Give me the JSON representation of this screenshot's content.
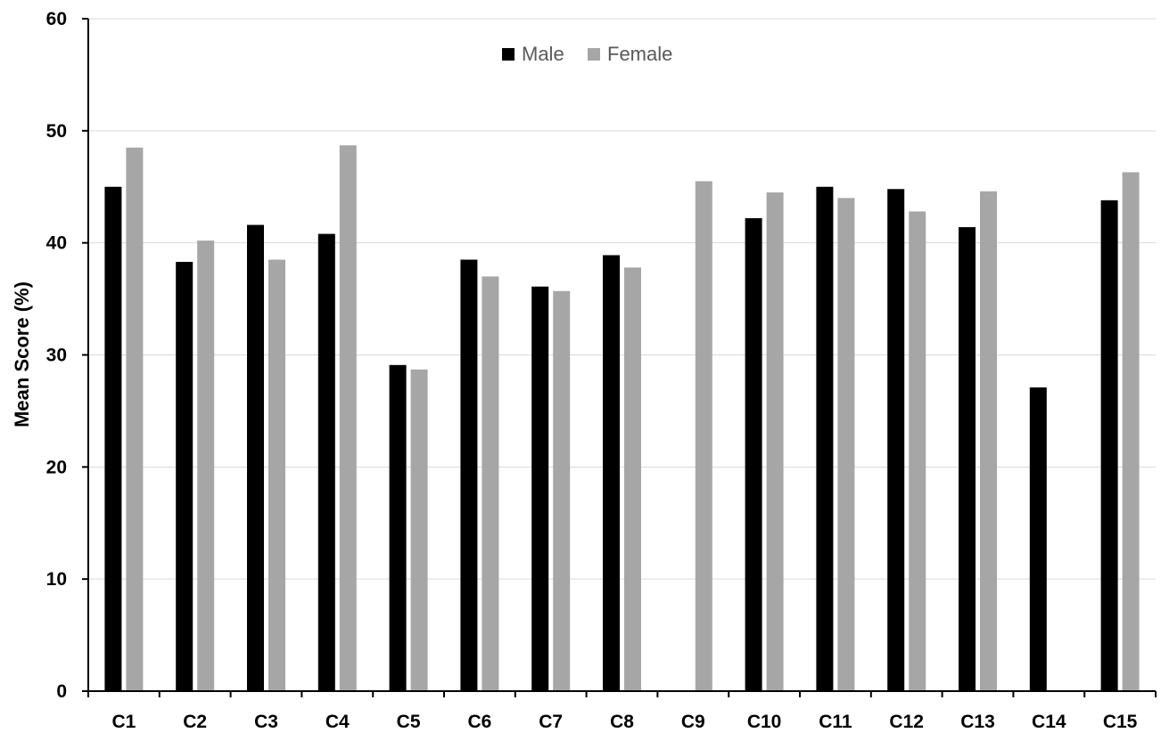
{
  "chart_data": {
    "type": "bar",
    "title": "",
    "xlabel": "",
    "ylabel": "Mean Score  (%)",
    "ylim": [
      0,
      60
    ],
    "yticks": [
      "0",
      "10",
      "20",
      "30",
      "40",
      "50",
      "60"
    ],
    "grid": true,
    "legend_position": "top-center",
    "categories": [
      "C1",
      "C2",
      "C3",
      "C4",
      "C5",
      "C6",
      "C7",
      "C8",
      "C9",
      "C10",
      "C11",
      "C12",
      "C13",
      "C14",
      "C15"
    ],
    "series": [
      {
        "name": "Male",
        "color": "#000000",
        "values": [
          45.0,
          38.3,
          41.6,
          40.8,
          29.1,
          38.5,
          36.1,
          38.9,
          null,
          42.2,
          45.0,
          44.8,
          41.4,
          27.1,
          43.8
        ]
      },
      {
        "name": "Female",
        "color": "#a6a6a6",
        "values": [
          48.5,
          40.2,
          38.5,
          48.7,
          28.7,
          37.0,
          35.7,
          37.8,
          45.5,
          44.5,
          44.0,
          42.8,
          44.6,
          null,
          46.3
        ]
      }
    ]
  }
}
